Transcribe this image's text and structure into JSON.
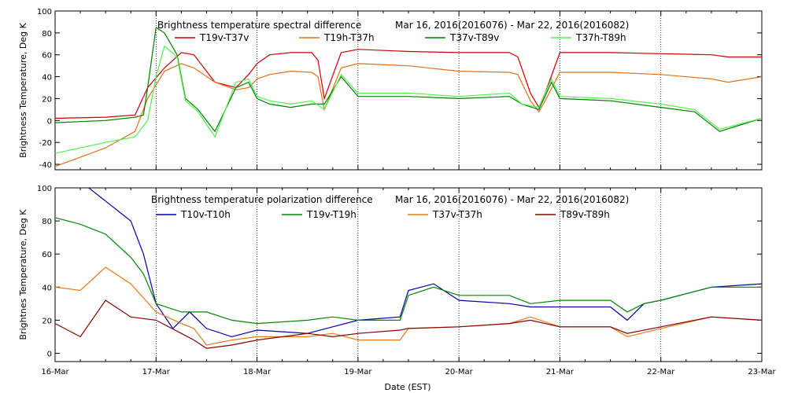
{
  "chart_data": [
    {
      "type": "line",
      "title": "Brightness temperature spectral difference",
      "date_range": "Mar 16, 2016(2016076)  -  Mar 22, 2016(2016082)",
      "ylabel": "Brightness Temperature, Deg K",
      "xlabel": "",
      "ylim": [
        -45,
        100
      ],
      "yticks": [
        -40,
        -20,
        0,
        20,
        40,
        60,
        80,
        100
      ],
      "xlim": [
        "16-Mar",
        "23-Mar"
      ],
      "grid": "vertical dotted at day boundaries",
      "legend": "top, two rows of labels below title",
      "series": [
        {
          "name": "T19v-T37v",
          "color": "#cc0000",
          "x": [
            "16-Mar 00:00",
            "16-Mar 12:00",
            "16-Mar 19:00",
            "16-Mar 22:00",
            "17-Mar 02:00",
            "17-Mar 06:00",
            "17-Mar 09:00",
            "17-Mar 14:00",
            "17-Mar 19:00",
            "17-Mar 22:00",
            "18-Mar 00:00",
            "18-Mar 03:00",
            "18-Mar 08:00",
            "18-Mar 13:00",
            "18-Mar 14:30",
            "18-Mar 16:00",
            "18-Mar 20:00",
            "19-Mar 00:00",
            "19-Mar 12:00",
            "20-Mar 00:00",
            "20-Mar 12:00",
            "20-Mar 14:00",
            "20-Mar 17:00",
            "20-Mar 19:00",
            "20-Mar 20:30",
            "21-Mar 00:00",
            "21-Mar 12:00",
            "22-Mar 00:00",
            "22-Mar 12:00",
            "22-Mar 16:00",
            "23-Mar 00:00"
          ],
          "values": [
            2,
            3,
            5,
            30,
            48,
            62,
            60,
            35,
            30,
            42,
            52,
            60,
            62,
            62,
            55,
            20,
            62,
            65,
            63,
            62,
            62,
            58,
            25,
            12,
            25,
            62,
            62,
            61,
            60,
            58,
            58
          ]
        },
        {
          "name": "T19h-T37h",
          "color": "#e0701a",
          "x": [
            "16-Mar 00:00",
            "16-Mar 12:00",
            "16-Mar 19:00",
            "16-Mar 22:00",
            "17-Mar 02:00",
            "17-Mar 06:00",
            "17-Mar 09:00",
            "17-Mar 14:00",
            "17-Mar 19:00",
            "17-Mar 22:00",
            "18-Mar 00:00",
            "18-Mar 03:00",
            "18-Mar 08:00",
            "18-Mar 13:00",
            "18-Mar 14:30",
            "18-Mar 16:00",
            "18-Mar 20:00",
            "19-Mar 00:00",
            "19-Mar 12:00",
            "20-Mar 00:00",
            "20-Mar 12:00",
            "20-Mar 14:00",
            "20-Mar 17:00",
            "20-Mar 19:00",
            "20-Mar 20:30",
            "21-Mar 00:00",
            "21-Mar 12:00",
            "22-Mar 00:00",
            "22-Mar 12:00",
            "22-Mar 16:00",
            "23-Mar 00:00"
          ],
          "values": [
            -42,
            -25,
            -10,
            20,
            45,
            52,
            48,
            35,
            28,
            30,
            38,
            42,
            45,
            44,
            40,
            10,
            48,
            52,
            50,
            45,
            44,
            42,
            18,
            8,
            18,
            44,
            44,
            42,
            38,
            35,
            40
          ]
        },
        {
          "name": "T37v-T89v",
          "color": "#008000",
          "x": [
            "16-Mar 00:00",
            "16-Mar 12:00",
            "16-Mar 19:00",
            "16-Mar 21:00",
            "16-Mar 22:00",
            "17-Mar 00:00",
            "17-Mar 02:00",
            "17-Mar 05:00",
            "17-Mar 07:00",
            "17-Mar 10:00",
            "17-Mar 14:00",
            "17-Mar 19:00",
            "17-Mar 22:00",
            "18-Mar 00:00",
            "18-Mar 03:00",
            "18-Mar 08:00",
            "18-Mar 13:00",
            "18-Mar 16:00",
            "18-Mar 20:00",
            "19-Mar 00:00",
            "19-Mar 12:00",
            "20-Mar 00:00",
            "20-Mar 12:00",
            "20-Mar 15:00",
            "20-Mar 19:00",
            "20-Mar 22:00",
            "21-Mar 00:00",
            "21-Mar 12:00",
            "22-Mar 00:00",
            "22-Mar 08:00",
            "22-Mar 14:00",
            "23-Mar 00:00"
          ],
          "values": [
            -2,
            0,
            3,
            5,
            30,
            85,
            80,
            60,
            20,
            10,
            -10,
            30,
            35,
            20,
            15,
            12,
            15,
            15,
            40,
            22,
            22,
            20,
            22,
            15,
            10,
            35,
            20,
            18,
            12,
            8,
            -10,
            2
          ]
        },
        {
          "name": "T37h-T89h",
          "color": "#55ee55",
          "x": [
            "16-Mar 00:00",
            "16-Mar 12:00",
            "16-Mar 19:00",
            "16-Mar 22:00",
            "17-Mar 00:00",
            "17-Mar 02:00",
            "17-Mar 05:00",
            "17-Mar 07:00",
            "17-Mar 10:00",
            "17-Mar 14:00",
            "17-Mar 19:00",
            "17-Mar 22:00",
            "18-Mar 00:00",
            "18-Mar 03:00",
            "18-Mar 08:00",
            "18-Mar 13:00",
            "18-Mar 16:00",
            "18-Mar 20:00",
            "19-Mar 00:00",
            "19-Mar 12:00",
            "20-Mar 00:00",
            "20-Mar 12:00",
            "20-Mar 15:00",
            "20-Mar 19:00",
            "20-Mar 22:00",
            "21-Mar 00:00",
            "21-Mar 12:00",
            "22-Mar 00:00",
            "22-Mar 08:00",
            "22-Mar 14:00",
            "23-Mar 00:00"
          ],
          "values": [
            -30,
            -20,
            -15,
            0,
            40,
            68,
            58,
            18,
            8,
            -15,
            35,
            38,
            22,
            18,
            15,
            18,
            10,
            42,
            25,
            25,
            22,
            25,
            15,
            12,
            38,
            22,
            20,
            15,
            10,
            -8,
            2
          ]
        }
      ]
    },
    {
      "type": "line",
      "title": "Brightness temperature polarization difference",
      "date_range": "Mar 16, 2016(2016076)  -  Mar 22, 2016(2016082)",
      "ylabel": "Brightnes Temperature, Deg K",
      "xlabel": "Date (EST)",
      "ylim": [
        -5,
        100
      ],
      "yticks": [
        0,
        20,
        40,
        60,
        80,
        100
      ],
      "xlim": [
        "16-Mar",
        "23-Mar"
      ],
      "xticks": [
        "16-Mar",
        "17-Mar",
        "18-Mar",
        "19-Mar",
        "20-Mar",
        "21-Mar",
        "22-Mar",
        "23-Mar"
      ],
      "grid": "vertical dotted at day boundaries",
      "legend": "top, two rows of labels below title",
      "series": [
        {
          "name": "T10v-T10h",
          "color": "#0000aa",
          "x": [
            "16-Mar 08:00",
            "16-Mar 12:00",
            "16-Mar 18:00",
            "16-Mar 21:00",
            "17-Mar 00:00",
            "17-Mar 04:00",
            "17-Mar 08:00",
            "17-Mar 12:00",
            "17-Mar 18:00",
            "18-Mar 00:00",
            "18-Mar 12:00",
            "18-Mar 18:00",
            "19-Mar 00:00",
            "19-Mar 10:00",
            "19-Mar 12:00",
            "19-Mar 18:00",
            "20-Mar 00:00",
            "20-Mar 12:00",
            "20-Mar 17:00",
            "21-Mar 00:00",
            "21-Mar 12:00",
            "21-Mar 16:00",
            "21-Mar 20:00",
            "22-Mar 00:00",
            "22-Mar 12:00",
            "23-Mar 00:00"
          ],
          "values": [
            100,
            92,
            80,
            60,
            30,
            15,
            25,
            15,
            10,
            14,
            12,
            16,
            20,
            22,
            38,
            42,
            32,
            30,
            28,
            28,
            28,
            20,
            30,
            32,
            40,
            42
          ]
        },
        {
          "name": "T19v-T19h",
          "color": "#008800",
          "x": [
            "16-Mar 00:00",
            "16-Mar 06:00",
            "16-Mar 12:00",
            "16-Mar 18:00",
            "16-Mar 21:00",
            "17-Mar 00:00",
            "17-Mar 06:00",
            "17-Mar 12:00",
            "17-Mar 18:00",
            "18-Mar 00:00",
            "18-Mar 12:00",
            "18-Mar 18:00",
            "19-Mar 00:00",
            "19-Mar 10:00",
            "19-Mar 12:00",
            "19-Mar 18:00",
            "20-Mar 00:00",
            "20-Mar 12:00",
            "20-Mar 17:00",
            "21-Mar 00:00",
            "21-Mar 12:00",
            "21-Mar 16:00",
            "21-Mar 20:00",
            "22-Mar 00:00",
            "22-Mar 12:00",
            "23-Mar 00:00"
          ],
          "values": [
            82,
            78,
            72,
            58,
            48,
            30,
            25,
            25,
            20,
            18,
            20,
            22,
            20,
            20,
            35,
            40,
            35,
            35,
            30,
            32,
            32,
            25,
            30,
            32,
            40,
            40
          ]
        },
        {
          "name": "T37v-T37h",
          "color": "#e67a1a",
          "x": [
            "16-Mar 00:00",
            "16-Mar 06:00",
            "16-Mar 12:00",
            "16-Mar 18:00",
            "17-Mar 00:00",
            "17-Mar 06:00",
            "17-Mar 09:00",
            "17-Mar 12:00",
            "17-Mar 18:00",
            "18-Mar 00:00",
            "18-Mar 12:00",
            "18-Mar 18:00",
            "19-Mar 00:00",
            "19-Mar 10:00",
            "19-Mar 12:00",
            "20-Mar 00:00",
            "20-Mar 12:00",
            "20-Mar 17:00",
            "21-Mar 00:00",
            "21-Mar 12:00",
            "21-Mar 16:00",
            "22-Mar 00:00",
            "22-Mar 12:00",
            "23-Mar 00:00"
          ],
          "values": [
            40,
            38,
            52,
            42,
            25,
            18,
            15,
            5,
            8,
            10,
            10,
            12,
            8,
            8,
            15,
            16,
            18,
            22,
            16,
            16,
            10,
            15,
            22,
            20
          ]
        },
        {
          "name": "T89v-T89h",
          "color": "#880000",
          "x": [
            "16-Mar 00:00",
            "16-Mar 06:00",
            "16-Mar 12:00",
            "16-Mar 18:00",
            "17-Mar 00:00",
            "17-Mar 06:00",
            "17-Mar 09:00",
            "17-Mar 12:00",
            "17-Mar 18:00",
            "18-Mar 00:00",
            "18-Mar 12:00",
            "18-Mar 18:00",
            "19-Mar 00:00",
            "19-Mar 10:00",
            "19-Mar 12:00",
            "20-Mar 00:00",
            "20-Mar 12:00",
            "20-Mar 17:00",
            "21-Mar 00:00",
            "21-Mar 12:00",
            "21-Mar 16:00",
            "22-Mar 00:00",
            "22-Mar 12:00",
            "23-Mar 00:00"
          ],
          "values": [
            18,
            10,
            32,
            22,
            20,
            12,
            8,
            3,
            5,
            8,
            12,
            10,
            12,
            14,
            15,
            16,
            18,
            20,
            16,
            16,
            12,
            16,
            22,
            20
          ]
        }
      ]
    }
  ]
}
